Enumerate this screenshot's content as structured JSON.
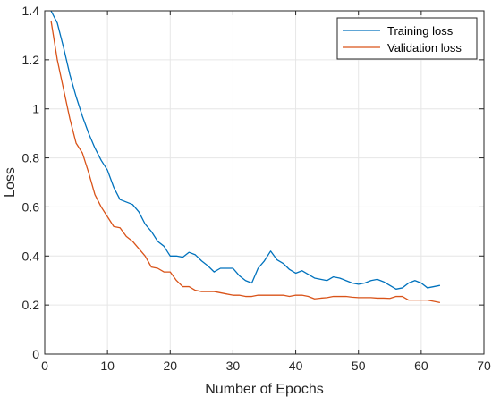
{
  "colors": {
    "training": "#0072BD",
    "validation": "#D95319",
    "grid": "#e6e6e6",
    "axis": "#262626"
  },
  "chart_data": {
    "type": "line",
    "xlabel": "Number of Epochs",
    "ylabel": "Loss",
    "xlim": [
      0,
      70
    ],
    "ylim": [
      0,
      1.4
    ],
    "xticks": [
      0,
      10,
      20,
      30,
      40,
      50,
      60,
      70
    ],
    "yticks": [
      0,
      0.2,
      0.4,
      0.6,
      0.8,
      1,
      1.2,
      1.4
    ],
    "grid": true,
    "legend_position": "top-right",
    "x": [
      1,
      2,
      3,
      4,
      5,
      6,
      7,
      8,
      9,
      10,
      11,
      12,
      13,
      14,
      15,
      16,
      17,
      18,
      19,
      20,
      21,
      22,
      23,
      24,
      25,
      26,
      27,
      28,
      29,
      30,
      31,
      32,
      33,
      34,
      35,
      36,
      37,
      38,
      39,
      40,
      41,
      42,
      43,
      44,
      45,
      46,
      47,
      48,
      49,
      50,
      51,
      52,
      53,
      54,
      55,
      56,
      57,
      58,
      59,
      60,
      61,
      62,
      63
    ],
    "series": [
      {
        "name": "Training loss",
        "values": [
          1.4,
          1.35,
          1.25,
          1.14,
          1.05,
          0.97,
          0.9,
          0.84,
          0.79,
          0.75,
          0.68,
          0.63,
          0.62,
          0.61,
          0.58,
          0.53,
          0.5,
          0.46,
          0.44,
          0.4,
          0.4,
          0.395,
          0.415,
          0.405,
          0.38,
          0.36,
          0.335,
          0.35,
          0.35,
          0.35,
          0.32,
          0.3,
          0.29,
          0.35,
          0.38,
          0.42,
          0.385,
          0.37,
          0.345,
          0.33,
          0.34,
          0.325,
          0.31,
          0.305,
          0.3,
          0.315,
          0.31,
          0.3,
          0.29,
          0.285,
          0.29,
          0.3,
          0.305,
          0.295,
          0.28,
          0.265,
          0.27,
          0.29,
          0.3,
          0.29,
          0.27,
          0.275,
          0.28
        ]
      },
      {
        "name": "Validation loss",
        "values": [
          1.36,
          1.2,
          1.08,
          0.96,
          0.86,
          0.82,
          0.74,
          0.65,
          0.6,
          0.56,
          0.52,
          0.515,
          0.48,
          0.46,
          0.43,
          0.4,
          0.355,
          0.35,
          0.335,
          0.335,
          0.3,
          0.275,
          0.275,
          0.26,
          0.255,
          0.255,
          0.255,
          0.25,
          0.245,
          0.24,
          0.24,
          0.235,
          0.235,
          0.24,
          0.24,
          0.24,
          0.24,
          0.24,
          0.235,
          0.24,
          0.24,
          0.235,
          0.225,
          0.228,
          0.23,
          0.235,
          0.235,
          0.235,
          0.232,
          0.23,
          0.23,
          0.23,
          0.228,
          0.228,
          0.227,
          0.235,
          0.235,
          0.22,
          0.22,
          0.22,
          0.22,
          0.215,
          0.21
        ]
      }
    ]
  }
}
